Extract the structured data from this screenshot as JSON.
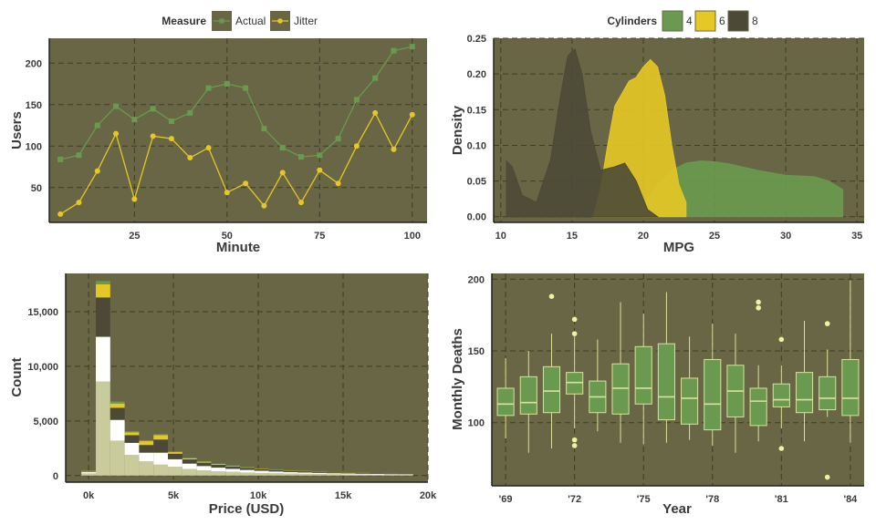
{
  "colors": {
    "panel": "#686644",
    "grid": "#3e3d27",
    "green": "#6a9a4f",
    "green_line": "#6a9a4f",
    "yellow": "#e5c825",
    "dark": "#4c4a36",
    "white": "#ffffff",
    "cream": "#c9cb9c",
    "box_line": "#d9e29a",
    "outlier": "#f2f0a5"
  },
  "chart_data": [
    {
      "id": "users",
      "type": "line",
      "legend_title": "Measure",
      "xlabel": "Minute",
      "ylabel": "Users",
      "xlim": [
        2,
        104
      ],
      "ylim": [
        8,
        230
      ],
      "xticks": [
        25,
        50,
        75,
        100
      ],
      "xtick_labels": [
        "25",
        "50",
        "75",
        "100"
      ],
      "yticks": [
        50,
        100,
        150,
        200
      ],
      "ytick_labels": [
        "50",
        "100",
        "150",
        "200"
      ],
      "x": [
        5,
        10,
        15,
        20,
        25,
        30,
        35,
        40,
        45,
        50,
        55,
        60,
        65,
        70,
        75,
        80,
        85,
        90,
        95,
        100
      ],
      "series": [
        {
          "name": "Actual",
          "color": "#6a9a4f",
          "marker": "square",
          "values": [
            84,
            89,
            125,
            148,
            132,
            145,
            130,
            140,
            170,
            175,
            170,
            121,
            98,
            87,
            89,
            109,
            156,
            182,
            215,
            220
          ]
        },
        {
          "name": "Jitter",
          "color": "#e5c825",
          "marker": "circle",
          "values": [
            18,
            32,
            70,
            115,
            36,
            112,
            109,
            86,
            98,
            44,
            55,
            28,
            68,
            32,
            71,
            55,
            100,
            140,
            96,
            138
          ]
        }
      ]
    },
    {
      "id": "density",
      "type": "area",
      "legend_title": "Cylinders",
      "xlabel": "MPG",
      "ylabel": "Density",
      "xlim": [
        9.5,
        35.5
      ],
      "ylim": [
        -0.008,
        0.25
      ],
      "xticks": [
        10,
        15,
        20,
        25,
        30,
        35
      ],
      "xtick_labels": [
        "10",
        "15",
        "20",
        "25",
        "30",
        "35"
      ],
      "yticks": [
        0,
        0.05,
        0.1,
        0.15,
        0.2,
        0.25
      ],
      "ytick_labels": [
        "0.00",
        "0.05",
        "0.10",
        "0.15",
        "0.20",
        "0.25"
      ],
      "series": [
        {
          "name": "4",
          "color": "#6a9a4f",
          "x": [
            20,
            21,
            22,
            23,
            24,
            25,
            26,
            28,
            30,
            32,
            33,
            34
          ],
          "y": [
            0.018,
            0.045,
            0.065,
            0.075,
            0.078,
            0.077,
            0.074,
            0.065,
            0.058,
            0.056,
            0.05,
            0.038
          ]
        },
        {
          "name": "6",
          "color": "#e5c825",
          "x": [
            16.5,
            17,
            17.5,
            18,
            19,
            19.5,
            20,
            20.5,
            21,
            21.5,
            22,
            22.5,
            23
          ],
          "y": [
            0.0,
            0.04,
            0.1,
            0.155,
            0.19,
            0.195,
            0.21,
            0.22,
            0.21,
            0.17,
            0.1,
            0.045,
            0.02
          ]
        },
        {
          "name": "8",
          "color": "#4c4a36",
          "x": [
            10.4,
            10.8,
            11.5,
            12.5,
            13.5,
            14.2,
            14.7,
            15.2,
            15.7,
            16.3,
            17,
            18,
            18.7,
            19.5,
            20.3,
            21
          ],
          "y": [
            0.078,
            0.07,
            0.03,
            0.02,
            0.08,
            0.17,
            0.225,
            0.235,
            0.2,
            0.12,
            0.065,
            0.07,
            0.075,
            0.05,
            0.01,
            0.0
          ]
        }
      ]
    },
    {
      "id": "price",
      "type": "bar",
      "xlabel": "Price (USD)",
      "ylabel": "Count",
      "xlim": [
        -1350,
        20000
      ],
      "ylim": [
        -600,
        18500
      ],
      "xticks": [
        0,
        5000,
        10000,
        15000,
        20000
      ],
      "xtick_labels": [
        "0k",
        "5k",
        "10k",
        "15k",
        "20k"
      ],
      "yticks": [
        0,
        5000,
        10000,
        15000
      ],
      "ytick_labels": [
        "0",
        "5,000",
        "10,000",
        "15,000"
      ],
      "bin_width": 850,
      "bin_centers": [
        0,
        850,
        1700,
        2550,
        3400,
        4250,
        5100,
        5950,
        6800,
        7650,
        8500,
        9350,
        10200,
        11050,
        11900,
        12750,
        13600,
        14450,
        15300,
        16150,
        17000,
        17850,
        18700
      ],
      "series": [
        {
          "name": "cream",
          "color": "#c9cb9c",
          "values": [
            200,
            8600,
            3200,
            1900,
            1300,
            1000,
            800,
            600,
            480,
            400,
            340,
            280,
            240,
            210,
            180,
            160,
            140,
            120,
            110,
            95,
            85,
            75,
            60
          ]
        },
        {
          "name": "white",
          "color": "#ffffff",
          "values": [
            150,
            4100,
            1900,
            1100,
            800,
            1100,
            700,
            500,
            400,
            330,
            280,
            240,
            200,
            170,
            150,
            130,
            115,
            100,
            90,
            80,
            70,
            60,
            50
          ]
        },
        {
          "name": "dark",
          "color": "#4c4a36",
          "values": [
            80,
            3600,
            1100,
            700,
            700,
            1200,
            500,
            380,
            300,
            260,
            220,
            190,
            160,
            140,
            120,
            100,
            90,
            75,
            65,
            55,
            45,
            35,
            25
          ]
        },
        {
          "name": "yellow",
          "color": "#e5c825",
          "values": [
            30,
            1200,
            400,
            250,
            350,
            400,
            150,
            110,
            90,
            75,
            60,
            50,
            45,
            40,
            35,
            30,
            25,
            20,
            18,
            15,
            12,
            10,
            8
          ]
        },
        {
          "name": "green",
          "color": "#6a9a4f",
          "values": [
            10,
            300,
            180,
            110,
            90,
            90,
            60,
            45,
            38,
            32,
            28,
            24,
            20,
            18,
            16,
            14,
            12,
            10,
            9,
            8,
            7,
            6,
            5
          ]
        }
      ]
    },
    {
      "id": "deaths",
      "type": "box",
      "xlabel": "Year",
      "ylabel": "Monthly Deaths",
      "xlim": [
        0.4,
        16.6
      ],
      "ylim": [
        56,
        204
      ],
      "xticks": [
        1,
        4,
        7,
        10,
        13,
        16
      ],
      "xtick_labels": [
        "'69",
        "'72",
        "'75",
        "'78",
        "'81",
        "'84"
      ],
      "yticks": [
        100,
        150,
        200
      ],
      "ytick_labels": [
        "100",
        "150",
        "200"
      ],
      "boxes": [
        {
          "x": 1,
          "lo": 89,
          "q1": 105,
          "med": 113,
          "q3": 124,
          "hi": 145,
          "out": []
        },
        {
          "x": 2,
          "lo": 79,
          "q1": 106,
          "med": 114,
          "q3": 132,
          "hi": 150,
          "out": []
        },
        {
          "x": 3,
          "lo": 82,
          "q1": 107,
          "med": 122,
          "q3": 139,
          "hi": 162,
          "out": [
            188
          ]
        },
        {
          "x": 4,
          "lo": 96,
          "q1": 120,
          "med": 128,
          "q3": 135,
          "hi": 160,
          "out": [
            162,
            172,
            88,
            84
          ]
        },
        {
          "x": 5,
          "lo": 94,
          "q1": 107,
          "med": 118,
          "q3": 129,
          "hi": 158,
          "out": []
        },
        {
          "x": 6,
          "lo": 86,
          "q1": 106,
          "med": 124,
          "q3": 141,
          "hi": 184,
          "out": []
        },
        {
          "x": 7,
          "lo": 85,
          "q1": 113,
          "med": 124,
          "q3": 153,
          "hi": 176,
          "out": []
        },
        {
          "x": 8,
          "lo": 86,
          "q1": 102,
          "med": 118,
          "q3": 155,
          "hi": 191,
          "out": []
        },
        {
          "x": 9,
          "lo": 88,
          "q1": 99,
          "med": 117,
          "q3": 131,
          "hi": 160,
          "out": []
        },
        {
          "x": 10,
          "lo": 84,
          "q1": 95,
          "med": 113,
          "q3": 144,
          "hi": 169,
          "out": []
        },
        {
          "x": 11,
          "lo": 79,
          "q1": 104,
          "med": 122,
          "q3": 140,
          "hi": 162,
          "out": []
        },
        {
          "x": 12,
          "lo": 87,
          "q1": 98,
          "med": 115,
          "q3": 124,
          "hi": 140,
          "out": [
            184,
            180
          ]
        },
        {
          "x": 13,
          "lo": 96,
          "q1": 111,
          "med": 116,
          "q3": 127,
          "hi": 140,
          "out": [
            158,
            82
          ]
        },
        {
          "x": 14,
          "lo": 87,
          "q1": 107,
          "med": 116,
          "q3": 135,
          "hi": 171,
          "out": []
        },
        {
          "x": 15,
          "lo": 104,
          "q1": 109,
          "med": 117,
          "q3": 132,
          "hi": 151,
          "out": [
            169,
            62
          ]
        },
        {
          "x": 16,
          "lo": 86,
          "q1": 105,
          "med": 117,
          "q3": 144,
          "hi": 199,
          "out": []
        }
      ]
    }
  ]
}
